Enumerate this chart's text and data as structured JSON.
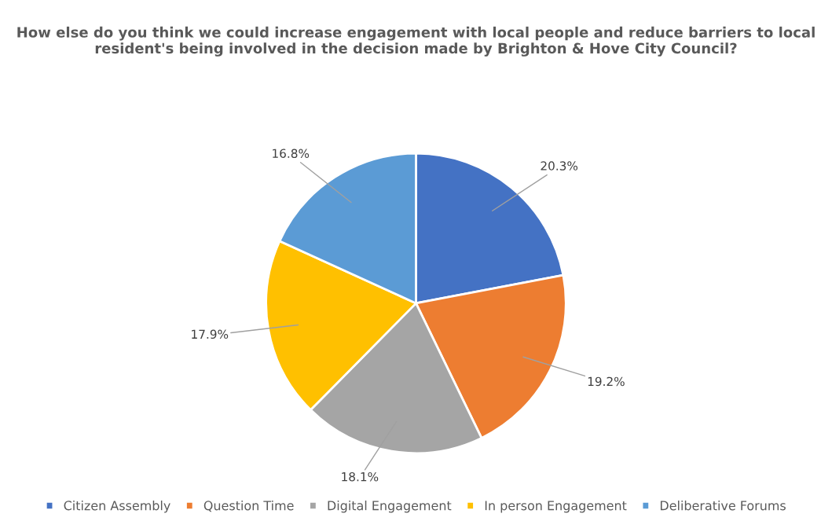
{
  "chart_data": {
    "type": "pie",
    "title": "How else do you think we could increase engagement with local people and reduce barriers to local resident's being involved in the decision made by Brighton & Hove City Council?",
    "categories": [
      "Citizen Assembly",
      "Question Time",
      "Digital Engagement",
      "In person Engagement",
      "Deliberative Forums"
    ],
    "values": [
      20.3,
      19.2,
      18.1,
      17.9,
      16.8
    ],
    "colors": [
      "#4472c4",
      "#ed7d31",
      "#a5a5a5",
      "#ffc000",
      "#5b9bd5"
    ],
    "value_labels": [
      "20.3%",
      "19.2%",
      "18.1%",
      "17.9%",
      "16.8%"
    ],
    "legend": "bottom"
  }
}
